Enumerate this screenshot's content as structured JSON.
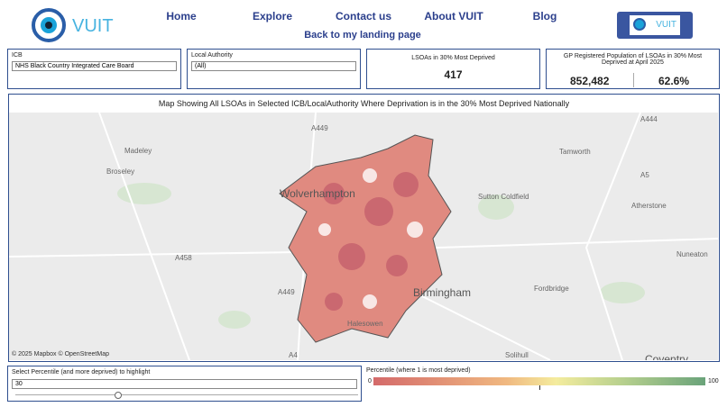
{
  "header": {
    "brand": "VUIT",
    "nav": [
      "Home",
      "Explore",
      "Contact us",
      "About VUIT",
      "Blog"
    ],
    "back_link": "Back to my landing page",
    "badge": "VUIT"
  },
  "filters": {
    "icb": {
      "label": "ICB",
      "value": "NHS Black Country Integrated Care Board"
    },
    "local_authority": {
      "label": "Local Authority",
      "value": "(All)"
    }
  },
  "kpis": {
    "lsoas": {
      "label": "LSOAs in 30% Most Deprived",
      "value": "417"
    },
    "gp": {
      "label": "GP Registered Population of LSOAs in 30% Most Deprived at April 2025",
      "population": "852,482",
      "percent": "62.6%"
    }
  },
  "map": {
    "title": "Map Showing All LSOAs in Selected ICB/LocalAuthority Where  Deprivation is in the 30% Most Deprived Nationally",
    "attribution": "© 2025 Mapbox  © OpenStreetMap",
    "places": [
      "A449",
      "Madeley",
      "Broseley",
      "A458",
      "A449",
      "Wolverhampton",
      "Tamworth",
      "A444",
      "A5",
      "Sutton Coldfield",
      "Atherstone",
      "Nuneaton",
      "Birmingham",
      "Fordbridge",
      "Halesowen",
      "Solihull",
      "Coventry",
      "A4"
    ]
  },
  "slider": {
    "label": "Select Percentile (and more deprived) to highlight",
    "value": 30
  },
  "legend": {
    "title": "Percentile (where 1 is most deprived)",
    "min": 0,
    "max": 100
  }
}
